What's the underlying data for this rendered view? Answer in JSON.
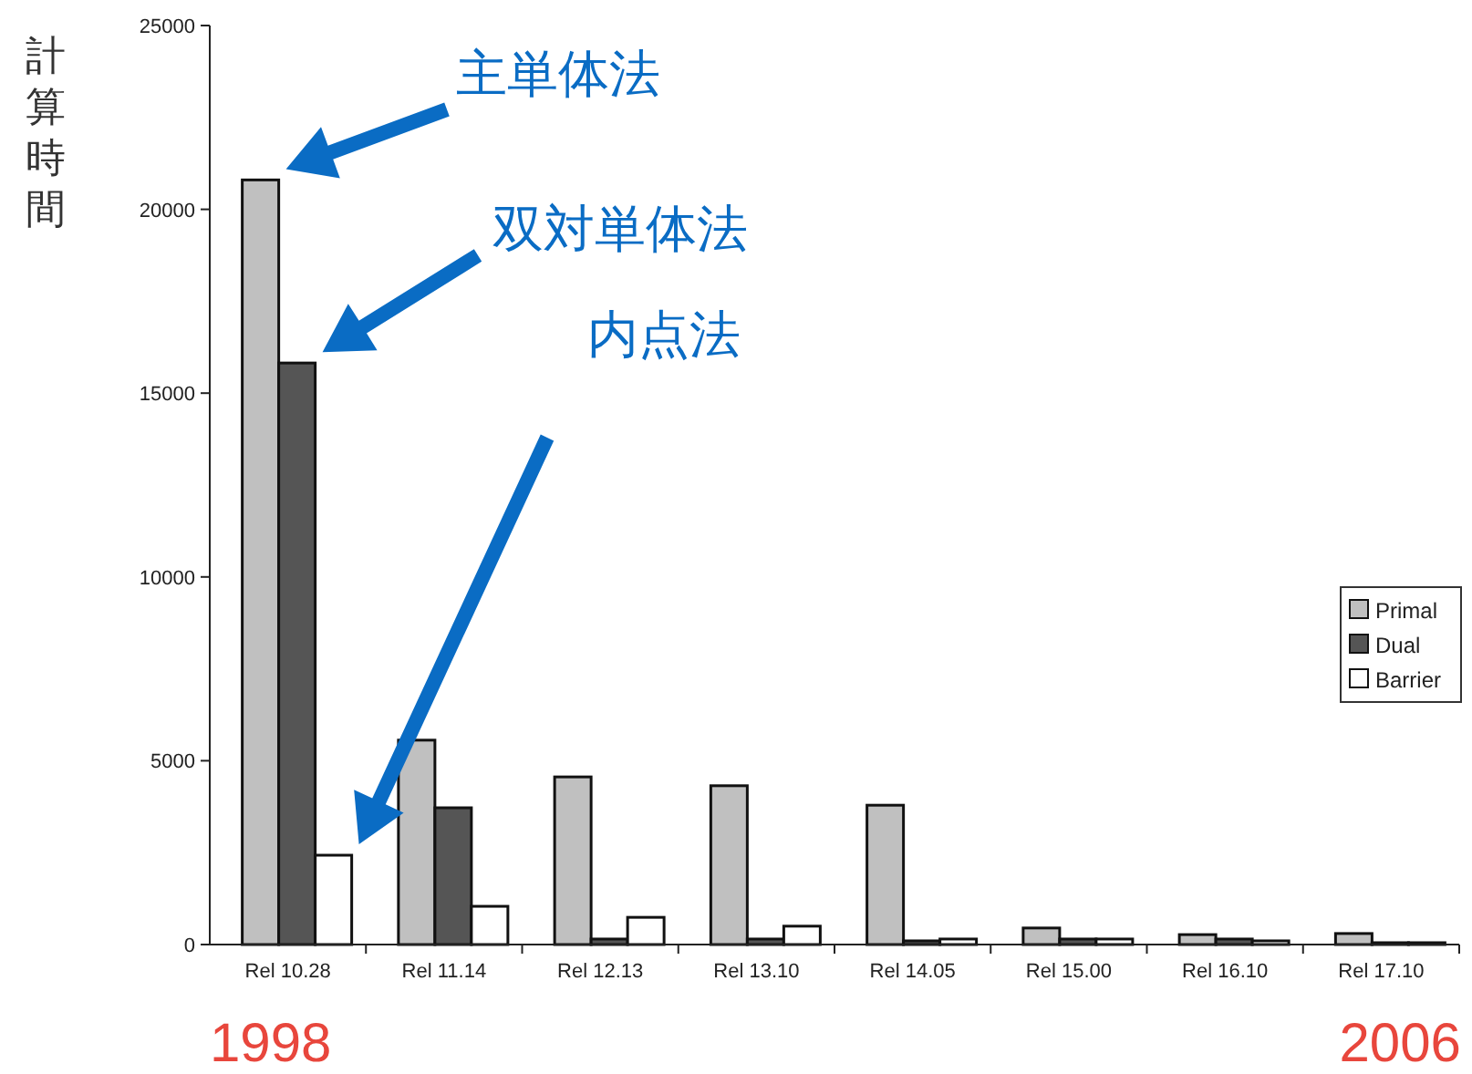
{
  "chart_data": {
    "type": "bar",
    "ylabel": "計算時間",
    "categories": [
      "Rel 10.28",
      "Rel 11.14",
      "Rel 12.13",
      "Rel 13.10",
      "Rel 14.05",
      "Rel 15.00",
      "Rel 16.10",
      "Rel 17.10"
    ],
    "series": [
      {
        "name": "Primal",
        "color": "#c0c0c0",
        "values": [
          20800,
          5560,
          4560,
          4320,
          3790,
          450,
          270,
          300
        ]
      },
      {
        "name": "Dual",
        "color": "#555555",
        "values": [
          15820,
          3720,
          150,
          150,
          100,
          150,
          150,
          50
        ]
      },
      {
        "name": "Barrier",
        "color": "#ffffff",
        "values": [
          2430,
          1040,
          740,
          500,
          150,
          150,
          100,
          50
        ]
      }
    ],
    "ylim": [
      0,
      25000
    ],
    "yticks": [
      0,
      5000,
      10000,
      15000,
      20000,
      25000
    ],
    "legend": "right",
    "grid": false,
    "annotations": [
      "主単体法",
      "双対単体法",
      "内点法",
      "1998",
      "2006"
    ]
  }
}
